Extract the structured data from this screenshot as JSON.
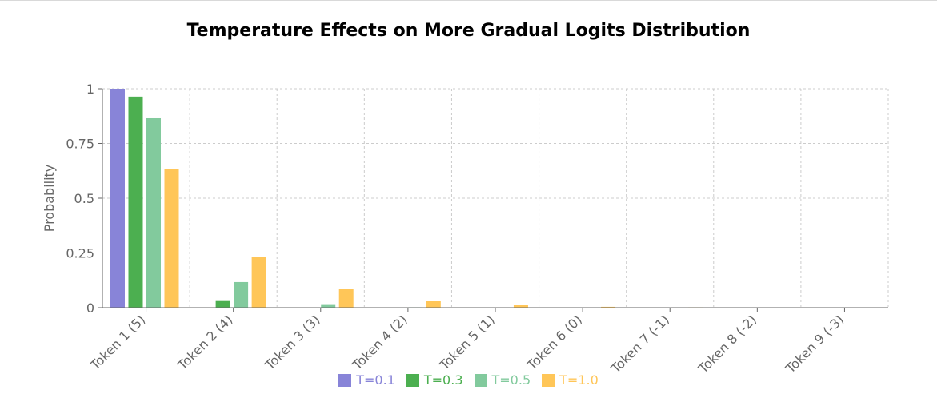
{
  "chart_data": {
    "type": "bar",
    "title": "Temperature Effects on More Gradual Logits Distribution",
    "xlabel": "",
    "ylabel": "Probability",
    "ylim": [
      0,
      1
    ],
    "yticks": [
      "0",
      "0.25",
      "0.5",
      "0.75",
      "1"
    ],
    "categories": [
      "Token 1 (5)",
      "Token 2 (4)",
      "Token 3 (3)",
      "Token 4 (2)",
      "Token 5 (1)",
      "Token 6 (0)",
      "Token 7 (-1)",
      "Token 8 (-2)",
      "Token 9 (-3)"
    ],
    "series": [
      {
        "name": "T=0.1",
        "color": "#8884d8",
        "values": [
          1.0,
          0.0,
          0.0,
          0.0,
          0.0,
          0.0,
          0.0,
          0.0,
          0.0
        ]
      },
      {
        "name": "T=0.3",
        "color": "#4caf50",
        "values": [
          0.964,
          0.034,
          0.001,
          0.0,
          0.0,
          0.0,
          0.0,
          0.0,
          0.0
        ]
      },
      {
        "name": "T=0.5",
        "color": "#82ca9d",
        "values": [
          0.865,
          0.117,
          0.016,
          0.002,
          0.0,
          0.0,
          0.0,
          0.0,
          0.0
        ]
      },
      {
        "name": "T=1.0",
        "color": "#ffc658",
        "values": [
          0.632,
          0.233,
          0.086,
          0.031,
          0.012,
          0.004,
          0.002,
          0.001,
          0.0
        ]
      }
    ],
    "grid": true,
    "legend_position": "bottom"
  }
}
